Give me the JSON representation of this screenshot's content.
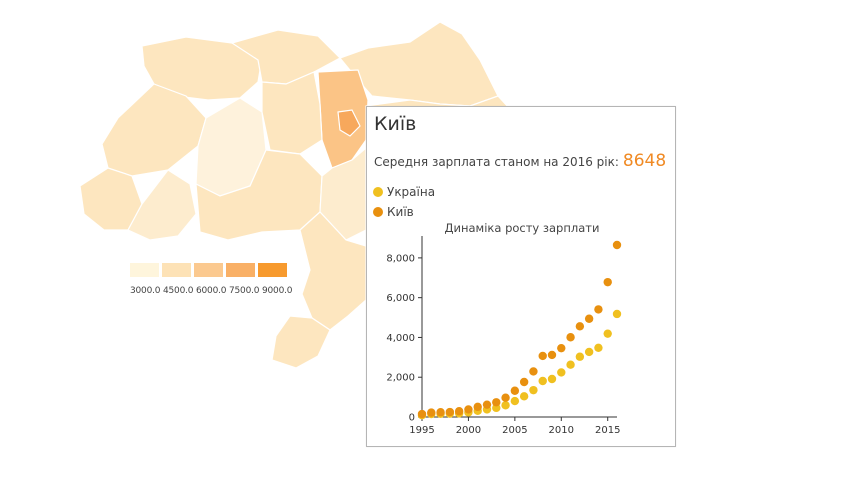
{
  "colors": {
    "background": "#ffffff",
    "region_fill_default": "#fde6bf",
    "region_fill_light": "#fdecce",
    "region_fill_pale": "#fef2dc",
    "region_highlight": "#fbc486",
    "tooltip_value": "#f08a24",
    "ukraine_series": "#f0c020",
    "kyiv_series": "#e8900f"
  },
  "legend": {
    "swatches": [
      "#fef5dc",
      "#fde2b6",
      "#fbc98f",
      "#f9b066",
      "#f79a2e"
    ],
    "labels": [
      "3000.0",
      "4500.0",
      "6000.0",
      "7500.0",
      "9000.0"
    ]
  },
  "map": {
    "regions": [
      {
        "name": "north-west-1",
        "tone": "light"
      },
      {
        "name": "north-west-2",
        "tone": "default"
      },
      {
        "name": "north-central",
        "tone": "light"
      },
      {
        "name": "north-east",
        "tone": "default"
      },
      {
        "name": "kyiv-oblast",
        "tone": "highlight"
      },
      {
        "name": "central",
        "tone": "pale"
      },
      {
        "name": "south-central",
        "tone": "default"
      },
      {
        "name": "east",
        "tone": "default"
      },
      {
        "name": "south",
        "tone": "default"
      }
    ]
  },
  "tooltip": {
    "title": "Київ",
    "subtitle": "Середня зарплата станом на 2016 рік:",
    "value": "8648",
    "legend": [
      {
        "label": "Україна",
        "color": "#f0c020"
      },
      {
        "label": "Київ",
        "color": "#e8900f"
      }
    ],
    "chart_title": "Динаміка росту зарплати"
  },
  "chart_data": {
    "type": "scatter",
    "title": "Динаміка росту зарплати",
    "x": [
      1995,
      1996,
      1997,
      1998,
      1999,
      2000,
      2001,
      2002,
      2003,
      2004,
      2005,
      2006,
      2007,
      2008,
      2009,
      2010,
      2011,
      2012,
      2013,
      2014,
      2015,
      2016
    ],
    "series": [
      {
        "name": "Україна",
        "color": "#f0c020",
        "values": [
          90,
          150,
          160,
          170,
          180,
          230,
          310,
          380,
          460,
          590,
          800,
          1040,
          1350,
          1810,
          1910,
          2240,
          2630,
          3030,
          3270,
          3480,
          4190,
          5180
        ]
      },
      {
        "name": "Київ",
        "color": "#e8900f",
        "values": [
          150,
          220,
          240,
          250,
          290,
          380,
          510,
          620,
          740,
          970,
          1320,
          1760,
          2290,
          3070,
          3120,
          3460,
          4010,
          4560,
          4940,
          5410,
          6780,
          8648
        ]
      }
    ],
    "xlim": [
      1995,
      2016
    ],
    "ylim": [
      0,
      9000
    ],
    "xticks": [
      1995,
      2000,
      2005,
      2010,
      2015
    ],
    "xtick_labels": [
      "1995",
      "2000",
      "2005",
      "2010",
      "2015"
    ],
    "yticks": [
      0,
      2000,
      4000,
      6000,
      8000
    ],
    "ytick_labels": [
      "0",
      "2,000",
      "4,000",
      "6,000",
      "8,000"
    ],
    "xlabel": "",
    "ylabel": "",
    "grid": false
  }
}
